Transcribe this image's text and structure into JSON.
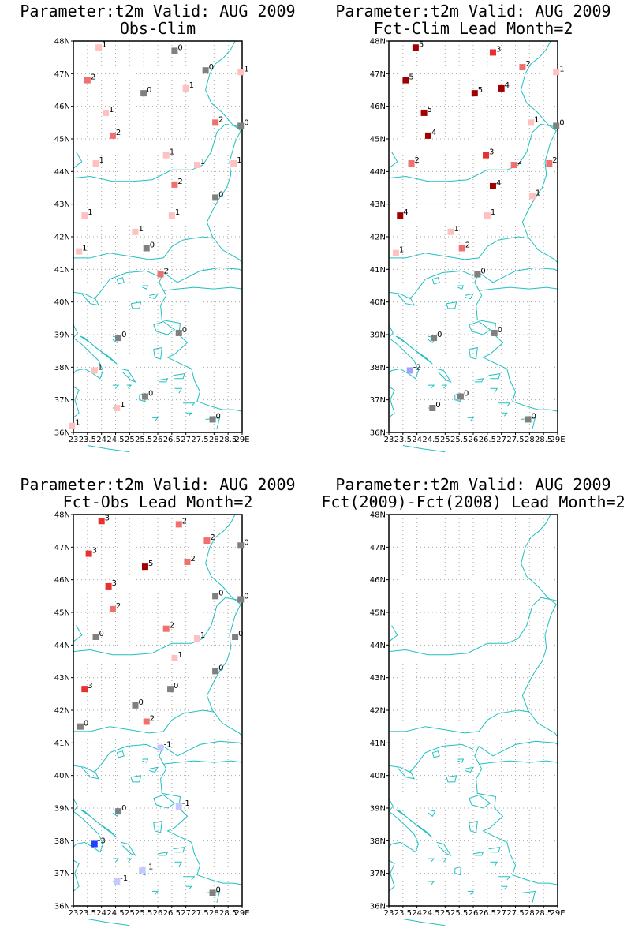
{
  "colors": {
    "coast": "#20c0c0",
    "grid": "#aaaaaa",
    "levels": {
      "-3": "#2040ff",
      "-1": "#c8c8ff",
      "0": "#808080",
      "1": "#ffc0c0",
      "2": "#f07070",
      "3": "#e83030",
      "4": "#a00000",
      "5": "#a00000"
    }
  },
  "axes": {
    "lat_labels": [
      "36N",
      "37N",
      "38N",
      "39N",
      "40N",
      "41N",
      "42N",
      "43N",
      "44N",
      "45N",
      "46N",
      "47N",
      "48N"
    ],
    "lon_labels": [
      "23",
      "23.5",
      "24",
      "24.5",
      "25",
      "25.5",
      "26",
      "26.5",
      "27",
      "27.5",
      "28",
      "28.5",
      "29E"
    ],
    "lat_range": [
      36,
      48
    ],
    "lon_range": [
      23,
      29
    ]
  },
  "panels": [
    {
      "title_line1": "Parameter:t2m Valid: AUG 2009",
      "title_line2": "Obs-Clim",
      "points": [
        {
          "lon": 23.9,
          "lat": 47.8,
          "v": 1
        },
        {
          "lon": 26.6,
          "lat": 47.7,
          "v": 0
        },
        {
          "lon": 27.7,
          "lat": 47.1,
          "v": 0
        },
        {
          "lon": 28.95,
          "lat": 47.05,
          "v": 1
        },
        {
          "lon": 23.5,
          "lat": 46.8,
          "v": 2
        },
        {
          "lon": 25.5,
          "lat": 46.4,
          "v": 0
        },
        {
          "lon": 27.0,
          "lat": 46.55,
          "v": 1
        },
        {
          "lon": 24.15,
          "lat": 45.8,
          "v": 1
        },
        {
          "lon": 28.05,
          "lat": 45.5,
          "v": 2
        },
        {
          "lon": 28.95,
          "lat": 45.4,
          "v": 0
        },
        {
          "lon": 24.4,
          "lat": 45.1,
          "v": 2
        },
        {
          "lon": 26.3,
          "lat": 44.5,
          "v": 1
        },
        {
          "lon": 23.8,
          "lat": 44.25,
          "v": 1
        },
        {
          "lon": 27.4,
          "lat": 44.2,
          "v": 1
        },
        {
          "lon": 28.7,
          "lat": 44.25,
          "v": 1
        },
        {
          "lon": 26.6,
          "lat": 43.6,
          "v": 2
        },
        {
          "lon": 28.05,
          "lat": 43.2,
          "v": 0
        },
        {
          "lon": 23.4,
          "lat": 42.65,
          "v": 1
        },
        {
          "lon": 26.5,
          "lat": 42.65,
          "v": 1
        },
        {
          "lon": 25.2,
          "lat": 42.15,
          "v": 1
        },
        {
          "lon": 25.6,
          "lat": 41.65,
          "v": 0
        },
        {
          "lon": 23.2,
          "lat": 41.55,
          "v": 1
        },
        {
          "lon": 26.1,
          "lat": 40.85,
          "v": 2
        },
        {
          "lon": 24.6,
          "lat": 38.9,
          "v": 0
        },
        {
          "lon": 26.75,
          "lat": 39.05,
          "v": 0
        },
        {
          "lon": 23.75,
          "lat": 37.9,
          "v": 1
        },
        {
          "lon": 24.55,
          "lat": 36.75,
          "v": 1
        },
        {
          "lon": 25.55,
          "lat": 37.1,
          "v": 0
        },
        {
          "lon": 27.95,
          "lat": 36.4,
          "v": 0
        },
        {
          "lon": 22.95,
          "lat": 36.2,
          "v": 1
        }
      ]
    },
    {
      "title_line1": "Parameter:t2m Valid: AUG 2009",
      "title_line2": "Fct-Clim Lead Month=2",
      "points": [
        {
          "lon": 23.95,
          "lat": 47.8,
          "v": 5
        },
        {
          "lon": 26.7,
          "lat": 47.65,
          "v": 3
        },
        {
          "lon": 27.75,
          "lat": 47.2,
          "v": 2
        },
        {
          "lon": 28.95,
          "lat": 47.05,
          "v": 1
        },
        {
          "lon": 23.6,
          "lat": 46.8,
          "v": 5
        },
        {
          "lon": 26.05,
          "lat": 46.4,
          "v": 5
        },
        {
          "lon": 27.0,
          "lat": 46.55,
          "v": 4
        },
        {
          "lon": 24.25,
          "lat": 45.8,
          "v": 5
        },
        {
          "lon": 28.05,
          "lat": 45.5,
          "v": 1
        },
        {
          "lon": 28.95,
          "lat": 45.4,
          "v": 0
        },
        {
          "lon": 24.4,
          "lat": 45.1,
          "v": 4
        },
        {
          "lon": 26.45,
          "lat": 44.5,
          "v": 3
        },
        {
          "lon": 23.8,
          "lat": 44.25,
          "v": 2
        },
        {
          "lon": 27.45,
          "lat": 44.2,
          "v": 2
        },
        {
          "lon": 28.7,
          "lat": 44.25,
          "v": 2
        },
        {
          "lon": 26.7,
          "lat": 43.55,
          "v": 4
        },
        {
          "lon": 28.1,
          "lat": 43.25,
          "v": 1
        },
        {
          "lon": 23.4,
          "lat": 42.65,
          "v": 4
        },
        {
          "lon": 26.5,
          "lat": 42.65,
          "v": 1
        },
        {
          "lon": 25.2,
          "lat": 42.15,
          "v": 1
        },
        {
          "lon": 25.6,
          "lat": 41.65,
          "v": 2
        },
        {
          "lon": 23.25,
          "lat": 41.5,
          "v": 1
        },
        {
          "lon": 26.15,
          "lat": 40.85,
          "v": 0
        },
        {
          "lon": 24.6,
          "lat": 38.9,
          "v": 0
        },
        {
          "lon": 26.75,
          "lat": 39.05,
          "v": 0
        },
        {
          "lon": 23.75,
          "lat": 37.9,
          "v": -2
        },
        {
          "lon": 24.55,
          "lat": 36.75,
          "v": 0
        },
        {
          "lon": 25.55,
          "lat": 37.1,
          "v": 0
        },
        {
          "lon": 27.95,
          "lat": 36.4,
          "v": 0
        }
      ]
    },
    {
      "title_line1": "Parameter:t2m Valid: AUG 2009",
      "title_line2": "Fct-Obs Lead Month=2",
      "points": [
        {
          "lon": 24.0,
          "lat": 47.8,
          "v": 3
        },
        {
          "lon": 26.75,
          "lat": 47.7,
          "v": 2
        },
        {
          "lon": 27.75,
          "lat": 47.2,
          "v": 2
        },
        {
          "lon": 28.95,
          "lat": 47.05,
          "v": 0
        },
        {
          "lon": 23.55,
          "lat": 46.8,
          "v": 3
        },
        {
          "lon": 25.55,
          "lat": 46.4,
          "v": 5
        },
        {
          "lon": 27.05,
          "lat": 46.55,
          "v": 2
        },
        {
          "lon": 24.25,
          "lat": 45.8,
          "v": 3
        },
        {
          "lon": 28.05,
          "lat": 45.5,
          "v": 0
        },
        {
          "lon": 28.95,
          "lat": 45.4,
          "v": 0
        },
        {
          "lon": 24.4,
          "lat": 45.1,
          "v": 2
        },
        {
          "lon": 26.3,
          "lat": 44.5,
          "v": 2
        },
        {
          "lon": 23.8,
          "lat": 44.25,
          "v": 0
        },
        {
          "lon": 27.4,
          "lat": 44.2,
          "v": 1
        },
        {
          "lon": 28.75,
          "lat": 44.25,
          "v": 0
        },
        {
          "lon": 26.6,
          "lat": 43.6,
          "v": 1
        },
        {
          "lon": 28.05,
          "lat": 43.2,
          "v": 0
        },
        {
          "lon": 23.4,
          "lat": 42.65,
          "v": 3
        },
        {
          "lon": 26.45,
          "lat": 42.65,
          "v": 0
        },
        {
          "lon": 25.2,
          "lat": 42.15,
          "v": 0
        },
        {
          "lon": 25.6,
          "lat": 41.65,
          "v": 2
        },
        {
          "lon": 23.25,
          "lat": 41.5,
          "v": 0
        },
        {
          "lon": 26.1,
          "lat": 40.85,
          "v": -1
        },
        {
          "lon": 24.6,
          "lat": 38.9,
          "v": 0
        },
        {
          "lon": 26.75,
          "lat": 39.05,
          "v": -1
        },
        {
          "lon": 23.75,
          "lat": 37.9,
          "v": -3
        },
        {
          "lon": 24.55,
          "lat": 36.75,
          "v": -1
        },
        {
          "lon": 25.45,
          "lat": 37.1,
          "v": -1
        },
        {
          "lon": 27.95,
          "lat": 36.4,
          "v": 0
        }
      ]
    },
    {
      "title_line1": "Parameter:t2m Valid: AUG 2009",
      "title_line2": "Fct(2009)-Fct(2008) Lead Month=2",
      "points": []
    }
  ]
}
